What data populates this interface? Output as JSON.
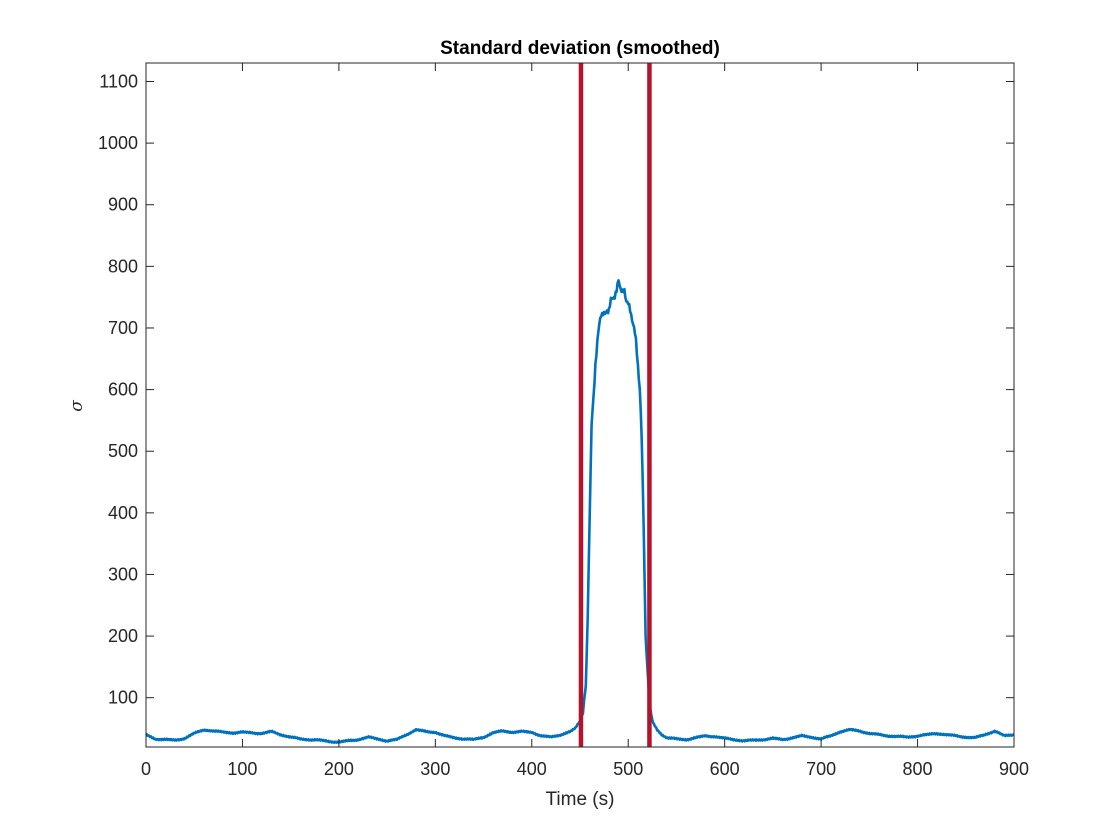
{
  "chart_data": {
    "type": "line",
    "title": "Standard deviation (smoothed)",
    "xlabel": "Time (s)",
    "ylabel": "σ",
    "xlim": [
      0,
      900
    ],
    "ylim": [
      20,
      1130
    ],
    "xticks": [
      0,
      100,
      200,
      300,
      400,
      500,
      600,
      700,
      800,
      900
    ],
    "yticks": [
      100,
      200,
      300,
      400,
      500,
      600,
      700,
      800,
      900,
      1000,
      1100
    ],
    "grid": false,
    "colors": {
      "series": "#0072BD",
      "markers": "#B5122B",
      "axes": "#262626"
    },
    "series": [
      {
        "x": [
          0,
          10,
          20,
          30,
          40,
          50,
          60,
          70,
          80,
          90,
          100,
          110,
          120,
          130,
          140,
          150,
          160,
          170,
          180,
          190,
          200,
          210,
          220,
          230,
          240,
          250,
          260,
          270,
          280,
          290,
          300,
          310,
          320,
          330,
          340,
          350,
          360,
          370,
          380,
          390,
          400,
          410,
          420,
          430,
          440,
          445,
          450,
          453,
          456,
          458,
          460,
          462,
          464,
          466,
          468,
          470,
          472,
          474,
          476,
          478,
          480,
          482,
          484,
          486,
          488,
          490,
          492,
          494,
          496,
          498,
          500,
          502,
          504,
          506,
          508,
          510,
          512,
          514,
          516,
          518,
          520,
          522,
          524,
          526,
          530,
          535,
          540,
          550,
          560,
          570,
          580,
          590,
          600,
          610,
          620,
          630,
          640,
          650,
          660,
          670,
          680,
          690,
          700,
          710,
          720,
          730,
          740,
          750,
          760,
          770,
          780,
          790,
          800,
          810,
          820,
          830,
          840,
          850,
          860,
          870,
          880,
          890,
          900
        ],
        "values": [
          40,
          33,
          32,
          31,
          34,
          42,
          48,
          46,
          44,
          43,
          44,
          43,
          42,
          45,
          40,
          36,
          33,
          32,
          31,
          29,
          28,
          30,
          32,
          36,
          33,
          30,
          32,
          40,
          48,
          45,
          44,
          38,
          35,
          33,
          32,
          36,
          43,
          46,
          44,
          45,
          44,
          38,
          36,
          40,
          45,
          50,
          62,
          75,
          120,
          230,
          390,
          545,
          585,
          640,
          680,
          705,
          722,
          725,
          722,
          727,
          730,
          745,
          748,
          752,
          760,
          778,
          765,
          758,
          760,
          745,
          740,
          728,
          715,
          700,
          680,
          640,
          600,
          520,
          380,
          200,
          145,
          95,
          70,
          58,
          48,
          40,
          35,
          33,
          32,
          35,
          38,
          37,
          34,
          32,
          30,
          31,
          32,
          34,
          32,
          35,
          38,
          36,
          33,
          38,
          45,
          48,
          46,
          42,
          40,
          38,
          37,
          36,
          38,
          40,
          42,
          40,
          38,
          36,
          35,
          40,
          46,
          38,
          40
        ]
      }
    ],
    "vlines": [
      451,
      522
    ]
  }
}
